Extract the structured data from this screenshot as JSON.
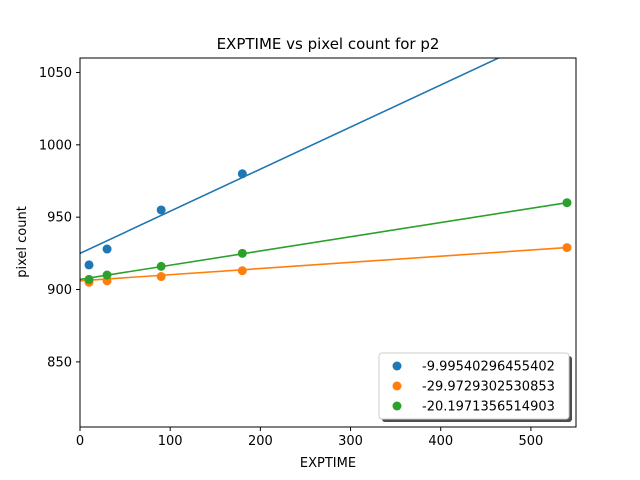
{
  "chart_data": {
    "type": "scatter",
    "title": "EXPTIME vs pixel count for p2",
    "xlabel": "EXPTIME",
    "ylabel": "pixel count",
    "xlim": [
      0,
      550
    ],
    "ylim": [
      805,
      1060
    ],
    "xticks": [
      0,
      100,
      200,
      300,
      400,
      500
    ],
    "yticks": [
      850,
      900,
      950,
      1000,
      1050
    ],
    "grid": false,
    "legend_position": "lower-right",
    "series": [
      {
        "name": "-9.99540296455402",
        "color": "#1f77b4",
        "x": [
          10,
          30,
          90,
          180
        ],
        "y": [
          917,
          928,
          955,
          980
        ],
        "fit_line": {
          "x": [
            0,
            550
          ],
          "y": [
            925,
            1085
          ]
        }
      },
      {
        "name": "-29.9729302530853",
        "color": "#ff7f0e",
        "x": [
          10,
          30,
          90,
          180,
          540
        ],
        "y": [
          905,
          906,
          909,
          913,
          929
        ],
        "fit_line": {
          "x": [
            0,
            540
          ],
          "y": [
            906,
            929
          ]
        }
      },
      {
        "name": "-20.1971356514903",
        "color": "#2ca02c",
        "x": [
          10,
          30,
          90,
          180,
          540
        ],
        "y": [
          907,
          910,
          916,
          925,
          960
        ],
        "fit_line": {
          "x": [
            0,
            540
          ],
          "y": [
            907,
            960
          ]
        }
      }
    ]
  }
}
